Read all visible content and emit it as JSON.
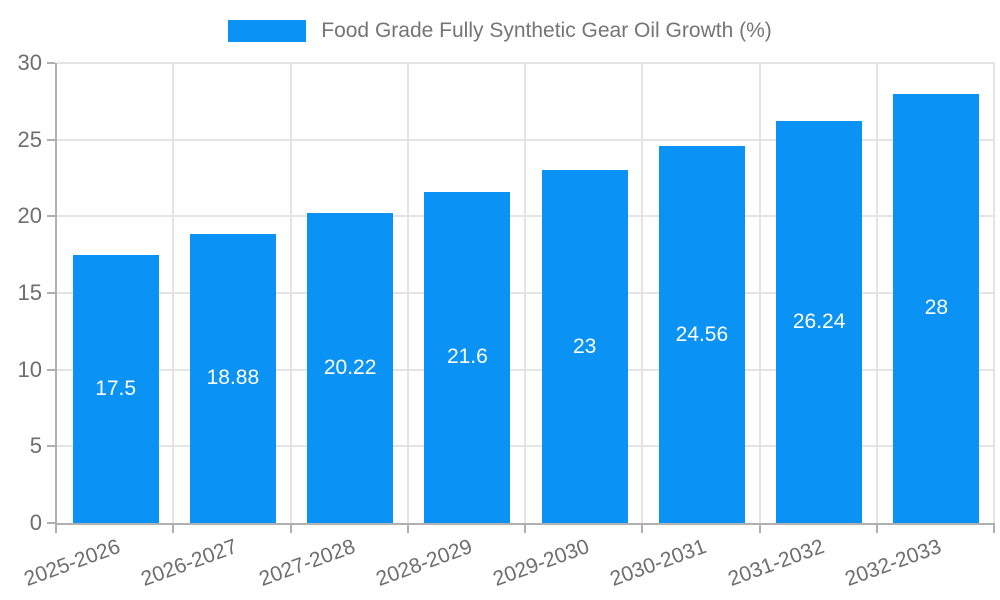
{
  "chart_data": {
    "type": "bar",
    "title": "Food Grade Fully Synthetic Gear Oil Growth (%)",
    "categories": [
      "2025-2026",
      "2026-2027",
      "2027-2028",
      "2028-2029",
      "2029-2030",
      "2030-2031",
      "2031-2032",
      "2032-2033"
    ],
    "values": [
      17.5,
      18.88,
      20.22,
      21.6,
      23,
      24.56,
      26.24,
      28
    ],
    "value_labels": [
      "17.5",
      "18.88",
      "20.22",
      "21.6",
      "23",
      "24.56",
      "26.24",
      "28"
    ],
    "xlabel": "",
    "ylabel": "",
    "ylim": [
      0,
      30
    ],
    "yticks": [
      0,
      5,
      10,
      15,
      20,
      25,
      30
    ],
    "grid": true,
    "legend_position": "top",
    "bar_color": "#0a92f5",
    "value_label_color": "#ffffff"
  },
  "colors": {
    "axis": "#b0b0b0",
    "gridline": "#e4e4e4",
    "tick_text": "#6e6e6e",
    "title_text": "#757575",
    "background": "#ffffff"
  }
}
